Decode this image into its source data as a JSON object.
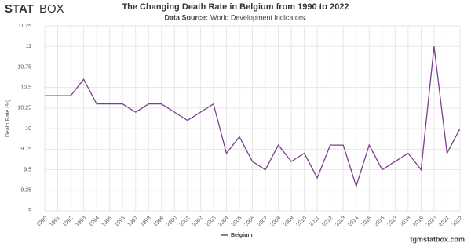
{
  "logo": {
    "bold": "STAT",
    "light": "BOX"
  },
  "source_label": "Data Source:",
  "source": "World Development Indicators.",
  "footer": "tgmstatbox.com",
  "chart_data": {
    "type": "line",
    "title": "The Changing Death Rate in Belgium from 1990 to 2022",
    "y_label": "Death Rate (%)",
    "categories": [
      "1990",
      "1991",
      "1992",
      "1993",
      "1994",
      "1995",
      "1996",
      "1997",
      "1998",
      "1999",
      "2000",
      "2001",
      "2002",
      "2003",
      "2004",
      "2005",
      "2006",
      "2007",
      "2008",
      "2009",
      "2010",
      "2011",
      "2012",
      "2013",
      "2014",
      "2015",
      "2016",
      "2017",
      "2018",
      "2019",
      "2020",
      "2021",
      "2022"
    ],
    "series": [
      {
        "name": "Belgium",
        "color": "#7b3f8c",
        "values": [
          10.4,
          10.4,
          10.4,
          10.6,
          10.3,
          10.3,
          10.3,
          10.2,
          10.3,
          10.3,
          10.2,
          10.1,
          10.2,
          10.3,
          9.7,
          9.9,
          9.6,
          9.5,
          9.8,
          9.6,
          9.7,
          9.4,
          9.8,
          9.8,
          9.3,
          9.8,
          9.5,
          9.6,
          9.7,
          9.5,
          11.0,
          9.7,
          10.0
        ]
      }
    ],
    "ylim": [
      9,
      11.25
    ],
    "yticks": [
      9,
      9.25,
      9.5,
      9.75,
      10,
      10.25,
      10.5,
      10.75,
      11,
      11.25
    ],
    "grid": true
  }
}
